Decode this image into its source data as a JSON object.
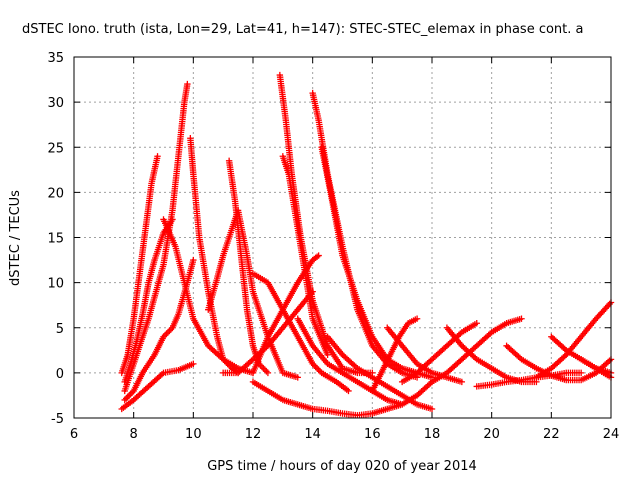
{
  "chart_data": {
    "type": "scatter",
    "title": "dSTEC Iono. truth (ista, Lon=29, Lat=41, h=147): STEC-STEC_elemax in phase cont. a",
    "xlabel": "GPS time / hours of day 020 of year 2014",
    "ylabel": "dSTEC  / TECUs",
    "xlim": [
      6,
      24
    ],
    "ylim": [
      -5,
      35
    ],
    "xticks": [
      6,
      8,
      10,
      12,
      14,
      16,
      18,
      20,
      22,
      24
    ],
    "yticks": [
      -5,
      0,
      5,
      10,
      15,
      20,
      25,
      30,
      35
    ],
    "grid": true,
    "marker": "+",
    "color": "#ff0000",
    "series": [
      {
        "x": [
          7.6,
          7.8,
          8.0,
          8.2,
          8.4,
          8.6,
          8.8
        ],
        "y": [
          0,
          2,
          6,
          11,
          16,
          21,
          24
        ]
      },
      {
        "x": [
          7.7,
          7.9,
          8.1,
          8.3,
          8.5,
          8.7,
          9.0,
          9.3
        ],
        "y": [
          -1,
          1,
          3.5,
          6.5,
          10,
          12.5,
          15.5,
          17
        ]
      },
      {
        "x": [
          7.7,
          8.0,
          8.5,
          9.0,
          9.3,
          9.5,
          9.7,
          9.8
        ],
        "y": [
          -2,
          1,
          6,
          12,
          18,
          24,
          30,
          32
        ]
      },
      {
        "x": [
          7.7,
          8.0,
          8.3,
          8.7,
          9.0,
          9.3,
          9.5,
          9.8,
          10.0
        ],
        "y": [
          -3,
          -2,
          0,
          2,
          4,
          5,
          6.5,
          10,
          12.5
        ]
      },
      {
        "x": [
          7.6,
          8.0,
          8.5,
          9.0,
          9.5,
          10.0
        ],
        "y": [
          -4,
          -3,
          -1.5,
          0,
          0.3,
          1
        ]
      },
      {
        "x": [
          9.0,
          9.4,
          9.7,
          10.0,
          10.5,
          11.0,
          11.5,
          12.0
        ],
        "y": [
          17,
          14,
          10,
          6,
          3,
          1.5,
          0.5,
          0
        ]
      },
      {
        "x": [
          9.9,
          10.0,
          10.2,
          10.5,
          10.8,
          11.0,
          11.3,
          11.5
        ],
        "y": [
          26,
          22,
          15,
          9,
          4,
          1.5,
          0.5,
          0
        ]
      },
      {
        "x": [
          10.5,
          10.8,
          11.0,
          11.3,
          11.5,
          11.8,
          12.0,
          12.5,
          13.0,
          13.5
        ],
        "y": [
          7,
          10.5,
          13,
          16,
          18,
          13,
          9,
          4,
          0,
          -0.5
        ]
      },
      {
        "x": [
          11.2,
          11.4,
          11.6,
          11.8,
          12.0,
          12.2,
          12.5
        ],
        "y": [
          23.5,
          19,
          13,
          7,
          3,
          1,
          0
        ]
      },
      {
        "x": [
          11.0,
          11.5,
          12.0,
          12.5,
          13.0,
          13.5,
          14.0
        ],
        "y": [
          0,
          0,
          1.5,
          3,
          5,
          7,
          9
        ]
      },
      {
        "x": [
          12.0,
          12.5,
          13.0,
          13.5,
          14.0,
          14.3,
          14.8,
          15.2
        ],
        "y": [
          11,
          10,
          7,
          4,
          1,
          0,
          -1,
          -2
        ]
      },
      {
        "x": [
          12.0,
          12.5,
          13.0,
          13.5,
          14.0,
          14.2
        ],
        "y": [
          0,
          4,
          7,
          10,
          12.5,
          13
        ]
      },
      {
        "x": [
          12.9,
          13.1,
          13.3,
          13.6,
          14.0,
          14.5,
          15.0,
          15.5,
          16.0
        ],
        "y": [
          33,
          28,
          22,
          15,
          8,
          3,
          0.5,
          0,
          0
        ]
      },
      {
        "x": [
          13.0,
          13.2,
          13.5,
          13.8,
          14.0,
          14.5
        ],
        "y": [
          24,
          22,
          16,
          10,
          6,
          2
        ]
      },
      {
        "x": [
          13.5,
          14.0,
          14.5,
          15.0,
          15.5,
          16.0,
          16.5,
          17.0
        ],
        "y": [
          6,
          3,
          1,
          0,
          -1,
          -2,
          -3,
          -3.5
        ]
      },
      {
        "x": [
          14.0,
          14.2,
          14.5,
          15.0,
          15.5,
          16.0,
          16.5,
          17.0,
          17.5
        ],
        "y": [
          31,
          28,
          22,
          14,
          7,
          3,
          1,
          0,
          -0.5
        ]
      },
      {
        "x": [
          14.3,
          14.6,
          15.0,
          15.5,
          16.0,
          16.5,
          17.0,
          17.5,
          18.0
        ],
        "y": [
          25,
          20,
          13,
          8,
          4,
          1.5,
          0.5,
          0,
          -0.5
        ]
      },
      {
        "x": [
          12.0,
          12.5,
          13.0,
          13.5,
          14.0,
          14.5,
          15.0,
          15.5,
          16.0,
          16.5,
          17.0,
          17.5,
          18.0
        ],
        "y": [
          -1,
          -2,
          -3,
          -3.5,
          -4,
          -4.2,
          -4.5,
          -4.7,
          -4.5,
          -4,
          -3.5,
          -2.5,
          -1
        ]
      },
      {
        "x": [
          14.5,
          15.0,
          15.5,
          16.0,
          16.5,
          17.0,
          17.5,
          18.0
        ],
        "y": [
          4,
          2,
          0.5,
          -0.5,
          -1.5,
          -2.5,
          -3.5,
          -4
        ]
      },
      {
        "x": [
          16.0,
          16.3,
          16.6,
          16.9,
          17.2,
          17.5
        ],
        "y": [
          -2,
          0,
          2,
          4,
          5.5,
          6
        ]
      },
      {
        "x": [
          16.5,
          17.0,
          17.5,
          18.0,
          18.5,
          19.0
        ],
        "y": [
          5,
          3,
          1,
          0,
          -0.5,
          -1
        ]
      },
      {
        "x": [
          17.0,
          17.5,
          18.0,
          18.5,
          19.0,
          19.5
        ],
        "y": [
          -1,
          0,
          1.5,
          3,
          4.5,
          5.5
        ]
      },
      {
        "x": [
          18.0,
          18.5,
          19.0,
          19.5,
          20.0,
          20.5,
          21.0
        ],
        "y": [
          -1,
          0,
          1.5,
          3,
          4.5,
          5.5,
          6
        ]
      },
      {
        "x": [
          18.5,
          19.0,
          19.5,
          20.0,
          20.5,
          21.0,
          21.5
        ],
        "y": [
          5,
          3,
          1.5,
          0.5,
          -0.5,
          -1,
          -1
        ]
      },
      {
        "x": [
          19.5,
          20.0,
          20.5,
          21.0,
          21.5,
          22.0,
          22.5,
          23.0
        ],
        "y": [
          -1.5,
          -1.3,
          -1,
          -0.8,
          -0.5,
          -0.3,
          0,
          0
        ]
      },
      {
        "x": [
          20.5,
          21.0,
          21.5,
          22.0,
          22.5,
          23.0,
          23.5,
          24.0
        ],
        "y": [
          3,
          1.5,
          0.5,
          -0.3,
          -0.8,
          -0.8,
          0,
          1.5
        ]
      },
      {
        "x": [
          21.5,
          22.0,
          22.5,
          23.0,
          23.5,
          24.0
        ],
        "y": [
          -0.5,
          0.5,
          2,
          4,
          6,
          7.8
        ]
      },
      {
        "x": [
          22.0,
          22.5,
          23.0,
          23.5,
          24.0
        ],
        "y": [
          4,
          2.5,
          1.5,
          0.5,
          -0.5
        ]
      },
      {
        "x": [
          23.0,
          23.5,
          24.0
        ],
        "y": [
          1.5,
          0.5,
          0
        ]
      }
    ]
  }
}
